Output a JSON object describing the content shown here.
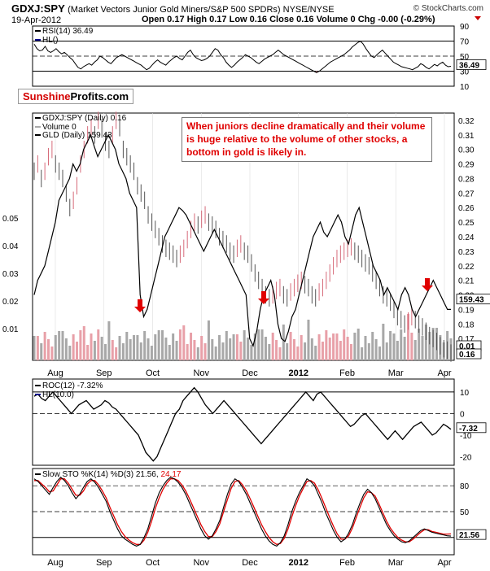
{
  "header": {
    "symbol": "GDXJ:SPY",
    "description": "(Market Vectors Junior Gold Miners/S&P 500 SPDRs) NYSE/NYSE",
    "date": "19-Apr-2012",
    "ohlc": "Open 0.17   High 0.17   Low 0.16   Close 0.16   Volume 0   Chg -0.00 (-0.29%)",
    "watermark": "© StockCharts.com"
  },
  "logo": {
    "part1": "Sunshine",
    "part2": "Profits.com"
  },
  "annotation": "When juniors decline dramatically and their volume is huge relative to the volume of other stocks, a bottom in gold is likely in.",
  "legends": {
    "rsi_1": "RSI(14) 36.49",
    "rsi_2": "HL()",
    "main_1": "GDXJ:SPY (Daily) 0.16",
    "main_2": "Volume 0",
    "main_3": "GLD (Daily) 159.43",
    "roc_1": "ROC(12) -7.32%",
    "roc_2": "HL(10.0)",
    "sto_1": "Slow STO %K(14) %D(3) 21.56,",
    "sto_2": "24.17"
  },
  "colors": {
    "up": "#d66b7a",
    "down": "#000000",
    "gld": "#000000",
    "volume_up": "#e8a0a8",
    "volume_down": "#a8a8a8",
    "arrow": "#e00000",
    "stoD": "#e00000"
  },
  "chart_data": [
    {
      "type": "line",
      "title": "RSI(14) 36.49",
      "ylim": [
        10,
        90
      ],
      "tick_labels": [
        "90",
        "70",
        "50",
        "30",
        "10"
      ],
      "reference_lines": [
        70,
        30
      ],
      "last_value": "36.49",
      "series": [
        {
          "name": "RSI(14)",
          "values": [
            66,
            60,
            57,
            58,
            63,
            57,
            55,
            57,
            60,
            56,
            53,
            55,
            52,
            48,
            45,
            40,
            35,
            33,
            36,
            38,
            40,
            38,
            42,
            45,
            50,
            48,
            45,
            42,
            40,
            44,
            48,
            50,
            52,
            50,
            48,
            46,
            44,
            42,
            40,
            38,
            35,
            32,
            34,
            38,
            42,
            45,
            42,
            40,
            38,
            42,
            45,
            48,
            50,
            47,
            45,
            50,
            55,
            58,
            52,
            48,
            46,
            44,
            45,
            47,
            50,
            55,
            60,
            58,
            52,
            48,
            42,
            38,
            35,
            38,
            42,
            45,
            48,
            52,
            50,
            48,
            45,
            42,
            40,
            43,
            46,
            48,
            50,
            52,
            55,
            58,
            55,
            52,
            50,
            48,
            46,
            44,
            42,
            40,
            38,
            36,
            34,
            32,
            30,
            28,
            30,
            33,
            36,
            39,
            42,
            44,
            46,
            48,
            50,
            52,
            55,
            58,
            62,
            65,
            68,
            70,
            66,
            60,
            55,
            50,
            48,
            52,
            55,
            58,
            54,
            50,
            46,
            42,
            40,
            38,
            36,
            35,
            34,
            33,
            32,
            34,
            36,
            40,
            38,
            35,
            33,
            36,
            39,
            37,
            40,
            42,
            38,
            36,
            36.49
          ]
        }
      ]
    },
    {
      "type": "line",
      "title": "GDXJ:SPY (Daily) 0.16 with GLD (Daily) 159.43",
      "x_tick_labels": [
        "Aug",
        "Sep",
        "Oct",
        "Nov",
        "Dec",
        "2012",
        "Feb",
        "Mar",
        "Apr"
      ],
      "right_axis_labels": [
        "0.32",
        "0.31",
        "0.30",
        "0.29",
        "0.28",
        "0.27",
        "0.26",
        "0.25",
        "0.24",
        "0.23",
        "0.22",
        "0.21",
        "0.20",
        "0.19",
        "0.18",
        "0.17",
        "0.16"
      ],
      "left_axis_labels": [
        "0.05",
        "0.04",
        "0.03",
        "0.02",
        "0.01"
      ],
      "ratio_last": "0.16",
      "gld_last": "159.43",
      "volume_last": "0.01",
      "series": [
        {
          "name": "GDXJ:SPY (Daily)",
          "values": [
            0.285,
            0.29,
            0.28,
            0.285,
            0.295,
            0.3,
            0.29,
            0.285,
            0.28,
            0.27,
            0.26,
            0.265,
            0.275,
            0.29,
            0.3,
            0.31,
            0.315,
            0.31,
            0.32,
            0.315,
            0.305,
            0.3,
            0.31,
            0.32,
            0.315,
            0.3,
            0.295,
            0.29,
            0.285,
            0.275,
            0.27,
            0.265,
            0.255,
            0.25,
            0.245,
            0.24,
            0.235,
            0.232,
            0.23,
            0.228,
            0.225,
            0.228,
            0.232,
            0.238,
            0.245,
            0.25,
            0.248,
            0.252,
            0.255,
            0.25,
            0.248,
            0.245,
            0.24,
            0.238,
            0.235,
            0.23,
            0.228,
            0.232,
            0.235,
            0.23,
            0.228,
            0.222,
            0.215,
            0.21,
            0.205,
            0.2,
            0.198,
            0.2,
            0.203,
            0.205,
            0.2,
            0.198,
            0.202,
            0.205,
            0.208,
            0.21,
            0.207,
            0.205,
            0.2,
            0.198,
            0.202,
            0.205,
            0.21,
            0.215,
            0.22,
            0.225,
            0.228,
            0.23,
            0.232,
            0.233,
            0.23,
            0.228,
            0.225,
            0.222,
            0.22,
            0.215,
            0.21,
            0.205,
            0.2,
            0.198,
            0.195,
            0.19,
            0.185,
            0.183,
            0.18,
            0.182,
            0.185,
            0.183,
            0.18,
            0.178,
            0.175,
            0.172,
            0.17,
            0.168,
            0.165,
            0.163,
            0.162,
            0.16
          ]
        },
        {
          "name": "GLD (Daily)",
          "values": [
            0.2,
            0.21,
            0.215,
            0.22,
            0.23,
            0.24,
            0.25,
            0.265,
            0.27,
            0.275,
            0.28,
            0.29,
            0.285,
            0.29,
            0.3,
            0.305,
            0.31,
            0.302,
            0.295,
            0.3,
            0.305,
            0.31,
            0.305,
            0.3,
            0.29,
            0.285,
            0.28,
            0.27,
            0.265,
            0.26,
            0.2,
            0.185,
            0.19,
            0.2,
            0.21,
            0.22,
            0.23,
            0.24,
            0.245,
            0.25,
            0.255,
            0.26,
            0.258,
            0.255,
            0.25,
            0.245,
            0.24,
            0.235,
            0.23,
            0.235,
            0.24,
            0.245,
            0.24,
            0.235,
            0.23,
            0.225,
            0.22,
            0.215,
            0.21,
            0.205,
            0.2,
            0.17,
            0.165,
            0.175,
            0.19,
            0.2,
            0.205,
            0.21,
            0.2,
            0.18,
            0.17,
            0.168,
            0.175,
            0.185,
            0.19,
            0.2,
            0.21,
            0.22,
            0.23,
            0.24,
            0.245,
            0.25,
            0.243,
            0.24,
            0.245,
            0.25,
            0.255,
            0.25,
            0.24,
            0.235,
            0.245,
            0.255,
            0.26,
            0.25,
            0.24,
            0.23,
            0.22,
            0.215,
            0.21,
            0.2,
            0.205,
            0.2,
            0.195,
            0.19,
            0.2,
            0.205,
            0.2,
            0.19,
            0.185,
            0.19,
            0.195,
            0.2,
            0.205,
            0.21,
            0.205,
            0.2,
            0.195,
            0.19,
            0.19
          ]
        }
      ],
      "annotations": [
        "When juniors decline dramatically and their volume is huge relative to the volume of other stocks, a bottom in gold is likely in."
      ]
    },
    {
      "type": "line",
      "title": "ROC(12) -7.32%",
      "ylim": [
        -24,
        16
      ],
      "tick_labels": [
        "10",
        "0",
        "-10",
        "-20"
      ],
      "reference_lines": [
        10,
        0,
        -10
      ],
      "last_value": "-7.32",
      "series": [
        {
          "name": "ROC(12)",
          "values": [
            8,
            9,
            7,
            6,
            8,
            10,
            8,
            6,
            4,
            2,
            0,
            2,
            4,
            5,
            6,
            4,
            2,
            3,
            4,
            6,
            5,
            3,
            2,
            0,
            -2,
            -4,
            -6,
            -8,
            -10,
            -14,
            -18,
            -20,
            -22,
            -20,
            -16,
            -12,
            -8,
            -4,
            0,
            2,
            6,
            8,
            10,
            12,
            10,
            7,
            4,
            2,
            0,
            2,
            4,
            6,
            4,
            2,
            0,
            -2,
            -4,
            -6,
            -8,
            -10,
            -12,
            -14,
            -12,
            -10,
            -8,
            -6,
            -4,
            -2,
            0,
            2,
            4,
            6,
            8,
            10,
            8,
            6,
            9,
            10,
            8,
            6,
            4,
            2,
            0,
            -2,
            -4,
            -6,
            -5,
            -3,
            -1,
            0,
            -2,
            -4,
            -6,
            -8,
            -10,
            -12,
            -10,
            -8,
            -10,
            -12,
            -10,
            -8,
            -6,
            -5,
            -4,
            -6,
            -8,
            -10,
            -9,
            -7,
            -5,
            -6,
            -7.32
          ]
        }
      ]
    },
    {
      "type": "line",
      "title": "Slow STO %K(14) %D(3) 21.56, 24.17",
      "ylim": [
        0,
        100
      ],
      "tick_labels": [
        "80",
        "50"
      ],
      "reference_lines": [
        80,
        50,
        20
      ],
      "last_values": [
        "21.56"
      ],
      "series": [
        {
          "name": "%K(14)",
          "values": [
            88,
            85,
            80,
            75,
            70,
            78,
            85,
            90,
            86,
            80,
            72,
            65,
            70,
            78,
            85,
            88,
            84,
            78,
            70,
            62,
            50,
            40,
            30,
            22,
            18,
            15,
            12,
            10,
            12,
            20,
            30,
            45,
            60,
            72,
            80,
            86,
            90,
            88,
            84,
            78,
            70,
            60,
            50,
            40,
            30,
            22,
            18,
            22,
            30,
            40,
            55,
            70,
            82,
            88,
            85,
            78,
            70,
            60,
            50,
            40,
            30,
            22,
            16,
            12,
            10,
            14,
            22,
            35,
            50,
            62,
            72,
            80,
            88,
            85,
            80,
            70,
            60,
            48,
            38,
            28,
            20,
            15,
            18,
            25,
            35,
            48,
            60,
            70,
            76,
            72,
            65,
            55,
            45,
            35,
            28,
            22,
            18,
            15,
            14,
            16,
            20,
            24,
            28,
            30,
            28,
            26,
            25,
            24,
            23,
            22,
            21.56
          ]
        },
        {
          "name": "%D(3)",
          "values": [
            86,
            86,
            82,
            78,
            73,
            74,
            81,
            88,
            88,
            83,
            76,
            69,
            69,
            74,
            82,
            86,
            86,
            81,
            74,
            66,
            55,
            45,
            35,
            27,
            21,
            17,
            14,
            12,
            12,
            17,
            26,
            39,
            54,
            66,
            76,
            83,
            88,
            88,
            86,
            81,
            74,
            65,
            55,
            45,
            35,
            27,
            21,
            21,
            27,
            36,
            50,
            64,
            77,
            85,
            86,
            81,
            74,
            65,
            55,
            45,
            35,
            27,
            20,
            15,
            12,
            13,
            19,
            30,
            44,
            57,
            68,
            77,
            85,
            86,
            83,
            75,
            65,
            54,
            43,
            33,
            24,
            18,
            18,
            22,
            31,
            43,
            55,
            66,
            73,
            72,
            68,
            59,
            49,
            39,
            31,
            25,
            20,
            17,
            15,
            15,
            18,
            22,
            26,
            29,
            29,
            27,
            26,
            25,
            24,
            24,
            24.17
          ]
        }
      ]
    }
  ]
}
